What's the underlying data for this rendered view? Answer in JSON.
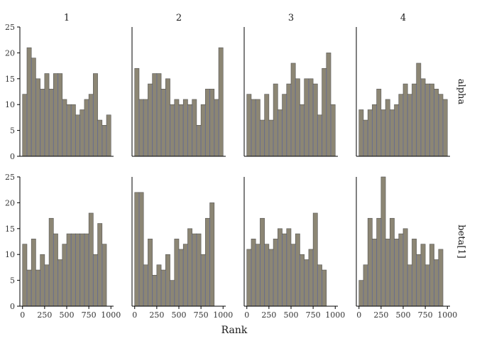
{
  "chart_data": {
    "type": "bar",
    "subtype": "faceted-histogram",
    "title": "",
    "xlabel": "Rank",
    "ylabel": "",
    "xlim": [
      -30,
      1030
    ],
    "ylim": [
      0,
      25
    ],
    "xticks": [
      0,
      250,
      500,
      750,
      1000
    ],
    "xtick_labels": [
      "0",
      "250",
      "500",
      "750",
      "1000"
    ],
    "yticks": [
      0,
      5,
      10,
      15,
      20,
      25
    ],
    "ytick_labels": [
      "0",
      "5",
      "10",
      "15",
      "20",
      "25"
    ],
    "bins": 20,
    "bin_start": 0,
    "bin_width": 50,
    "grid": false,
    "bar_fill": "#8c8674",
    "bar_divider_color": "#6a7090",
    "columns": [
      "1",
      "2",
      "3",
      "4"
    ],
    "rows": [
      "alpha",
      "beta[1]"
    ],
    "panels": [
      {
        "row": "alpha",
        "col": "1",
        "values": [
          12,
          21,
          19,
          15,
          13,
          16,
          13,
          16,
          16,
          11,
          10,
          10,
          8,
          9,
          11,
          12,
          16,
          7,
          6,
          8
        ]
      },
      {
        "row": "alpha",
        "col": "2",
        "values": [
          17,
          11,
          11,
          14,
          16,
          16,
          13,
          15,
          10,
          11,
          10,
          11,
          10,
          11,
          6,
          10,
          13,
          13,
          11,
          21
        ]
      },
      {
        "row": "alpha",
        "col": "3",
        "values": [
          12,
          11,
          11,
          7,
          12,
          7,
          14,
          9,
          12,
          14,
          18,
          15,
          10,
          15,
          15,
          14,
          8,
          17,
          20,
          10
        ]
      },
      {
        "row": "alpha",
        "col": "4",
        "values": [
          9,
          7,
          9,
          10,
          13,
          9,
          11,
          9,
          10,
          12,
          14,
          12,
          14,
          18,
          15,
          14,
          14,
          13,
          12,
          11
        ]
      },
      {
        "row": "beta[1]",
        "col": "1",
        "values": [
          12,
          7,
          13,
          7,
          10,
          8,
          17,
          14,
          9,
          12,
          14,
          14,
          14,
          14,
          14,
          18,
          10,
          16,
          12,
          0
        ]
      },
      {
        "row": "beta[1]",
        "col": "2",
        "values": [
          22,
          22,
          8,
          13,
          6,
          8,
          7,
          10,
          5,
          13,
          11,
          12,
          15,
          14,
          14,
          10,
          17,
          20,
          0,
          0
        ]
      },
      {
        "row": "beta[1]",
        "col": "3",
        "values": [
          11,
          13,
          12,
          17,
          12,
          11,
          13,
          15,
          14,
          15,
          12,
          14,
          10,
          9,
          11,
          18,
          8,
          7,
          0,
          0
        ]
      },
      {
        "row": "beta[1]",
        "col": "4",
        "values": [
          5,
          8,
          17,
          13,
          17,
          25,
          13,
          17,
          13,
          14,
          15,
          8,
          13,
          10,
          12,
          8,
          12,
          9,
          11,
          0
        ]
      }
    ]
  }
}
